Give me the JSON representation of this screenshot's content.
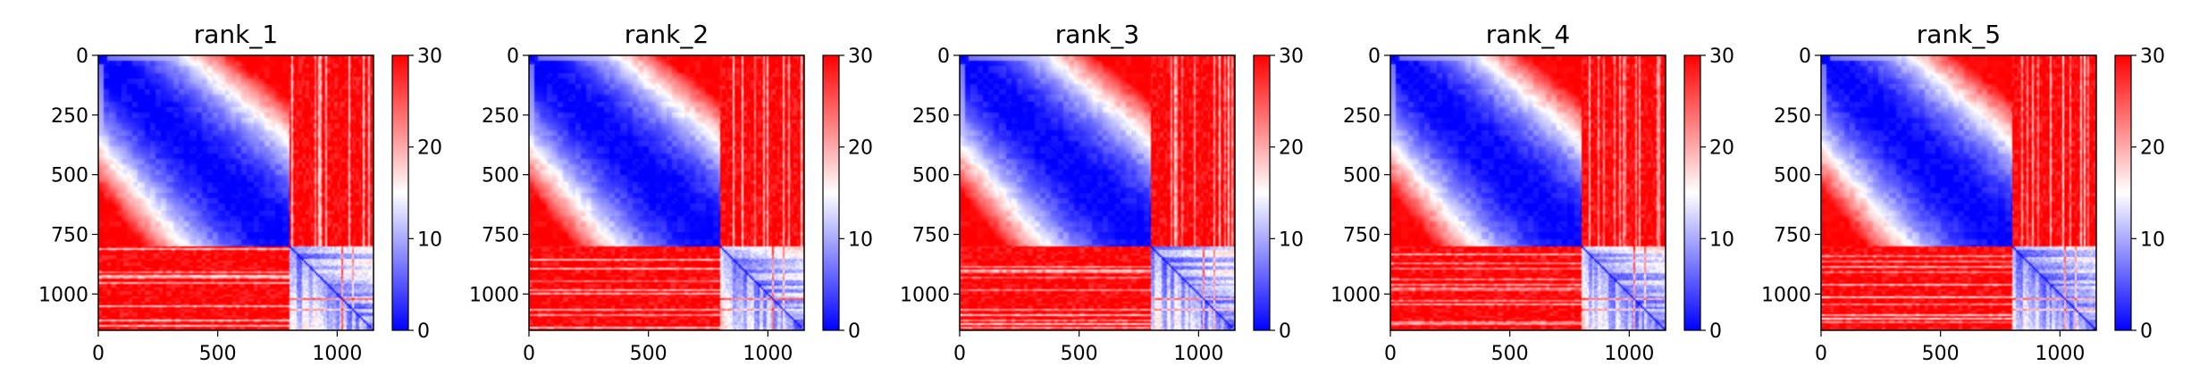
{
  "chart_data": {
    "type": "heatmap",
    "colormap": {
      "name": "bwr",
      "low": "#0000ff",
      "mid": "#ffffff",
      "high": "#ff0000"
    },
    "colorbar": {
      "vmin": 0,
      "vmax": 30,
      "ticks": [
        0,
        10,
        20,
        30
      ]
    },
    "x_ticks": [
      0,
      500,
      1000
    ],
    "y_ticks": [
      0,
      250,
      500,
      750,
      1000
    ],
    "matrix_size": 1152,
    "cluster_boundary": 800,
    "description_values": {
      "within_block_low": 0,
      "between_block_high": 30
    },
    "panels": [
      {
        "title": "rank_1"
      },
      {
        "title": "rank_2"
      },
      {
        "title": "rank_3"
      },
      {
        "title": "rank_4"
      },
      {
        "title": "rank_5"
      }
    ]
  }
}
